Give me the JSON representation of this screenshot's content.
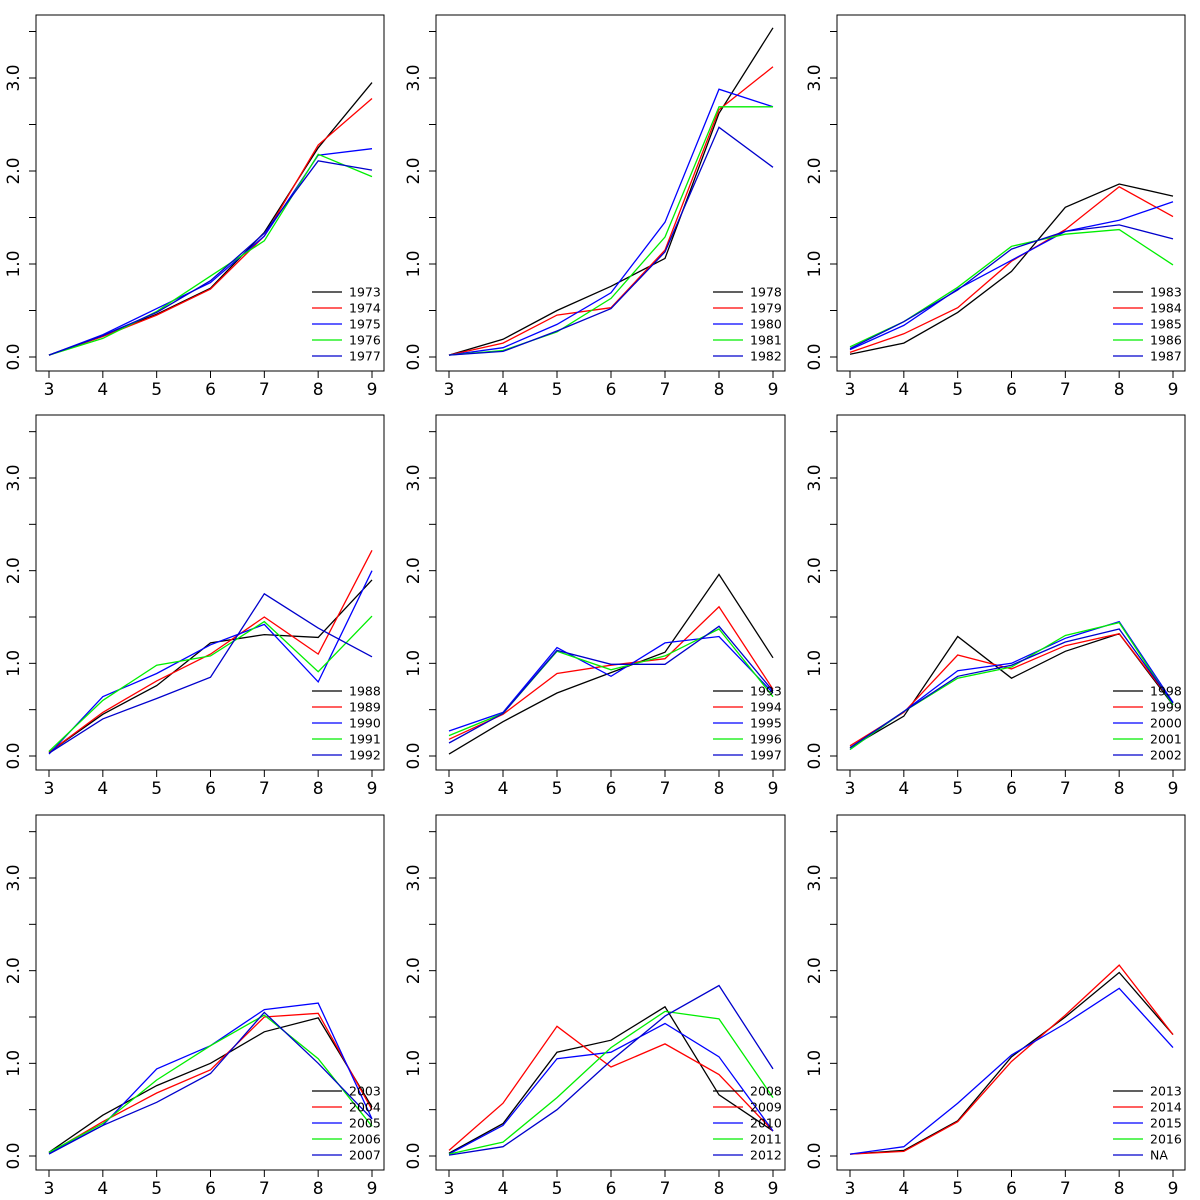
{
  "chart_data": [
    {
      "type": "line",
      "x": [
        3,
        4,
        5,
        6,
        7,
        8,
        9
      ],
      "xlim": [
        3,
        9
      ],
      "ylim": [
        0,
        3.5
      ],
      "yticks": [
        "0.0",
        "1.0",
        "2.0",
        "3.0"
      ],
      "grid": false,
      "legend_position": "bottom-right",
      "series": [
        {
          "name": "1973",
          "color": "#000000",
          "values": [
            0.02,
            0.23,
            0.46,
            0.74,
            1.34,
            2.25,
            2.95
          ]
        },
        {
          "name": "1974",
          "color": "#ff0000",
          "values": [
            0.02,
            0.22,
            0.45,
            0.73,
            1.3,
            2.28,
            2.78
          ]
        },
        {
          "name": "1975",
          "color": "#0000ff",
          "values": [
            0.02,
            0.24,
            0.52,
            0.8,
            1.3,
            2.17,
            2.24
          ]
        },
        {
          "name": "1976",
          "color": "#00ee00",
          "values": [
            0.02,
            0.2,
            0.49,
            0.87,
            1.25,
            2.18,
            1.94
          ]
        },
        {
          "name": "1977",
          "color": "#0000cc",
          "values": [
            0.02,
            0.23,
            0.48,
            0.82,
            1.33,
            2.11,
            2.01
          ]
        }
      ]
    },
    {
      "type": "line",
      "x": [
        3,
        4,
        5,
        6,
        7,
        8,
        9
      ],
      "xlim": [
        3,
        9
      ],
      "ylim": [
        0,
        3.5
      ],
      "yticks": [
        "0.0",
        "1.0",
        "2.0",
        "3.0"
      ],
      "grid": false,
      "legend_position": "bottom-right",
      "series": [
        {
          "name": "1978",
          "color": "#000000",
          "values": [
            0.02,
            0.19,
            0.5,
            0.76,
            1.06,
            2.62,
            3.54
          ]
        },
        {
          "name": "1979",
          "color": "#ff0000",
          "values": [
            0.02,
            0.15,
            0.45,
            0.53,
            1.15,
            2.66,
            3.12
          ]
        },
        {
          "name": "1980",
          "color": "#0000ff",
          "values": [
            0.02,
            0.1,
            0.35,
            0.69,
            1.45,
            2.88,
            2.69
          ]
        },
        {
          "name": "1981",
          "color": "#00ee00",
          "values": [
            0.02,
            0.07,
            0.27,
            0.63,
            1.29,
            2.69,
            2.69
          ]
        },
        {
          "name": "1982",
          "color": "#0000cc",
          "values": [
            0.02,
            0.06,
            0.28,
            0.52,
            1.13,
            2.47,
            2.04
          ]
        }
      ]
    },
    {
      "type": "line",
      "x": [
        3,
        4,
        5,
        6,
        7,
        8,
        9
      ],
      "xlim": [
        3,
        9
      ],
      "ylim": [
        0,
        3.5
      ],
      "yticks": [
        "0.0",
        "1.0",
        "2.0",
        "3.0"
      ],
      "grid": false,
      "legend_position": "bottom-right",
      "series": [
        {
          "name": "1983",
          "color": "#000000",
          "values": [
            0.03,
            0.15,
            0.48,
            0.92,
            1.61,
            1.86,
            1.73
          ]
        },
        {
          "name": "1984",
          "color": "#ff0000",
          "values": [
            0.05,
            0.25,
            0.53,
            1.03,
            1.37,
            1.83,
            1.51
          ]
        },
        {
          "name": "1985",
          "color": "#0000ff",
          "values": [
            0.08,
            0.34,
            0.73,
            1.04,
            1.35,
            1.47,
            1.67
          ]
        },
        {
          "name": "1986",
          "color": "#00ee00",
          "values": [
            0.11,
            0.38,
            0.75,
            1.19,
            1.32,
            1.37,
            0.99
          ]
        },
        {
          "name": "1987",
          "color": "#0000cc",
          "values": [
            0.09,
            0.38,
            0.72,
            1.16,
            1.35,
            1.42,
            1.27
          ]
        }
      ]
    },
    {
      "type": "line",
      "x": [
        3,
        4,
        5,
        6,
        7,
        8,
        9
      ],
      "xlim": [
        3,
        9
      ],
      "ylim": [
        0,
        3.5
      ],
      "yticks": [
        "0.0",
        "1.0",
        "2.0",
        "3.0"
      ],
      "grid": false,
      "legend_position": "bottom-right",
      "series": [
        {
          "name": "1988",
          "color": "#000000",
          "values": [
            0.04,
            0.45,
            0.76,
            1.22,
            1.31,
            1.28,
            1.9
          ]
        },
        {
          "name": "1989",
          "color": "#ff0000",
          "values": [
            0.04,
            0.47,
            0.81,
            1.1,
            1.5,
            1.1,
            2.22
          ]
        },
        {
          "name": "1990",
          "color": "#0000ff",
          "values": [
            0.02,
            0.64,
            0.89,
            1.2,
            1.42,
            0.8,
            2.0
          ]
        },
        {
          "name": "1991",
          "color": "#00ee00",
          "values": [
            0.05,
            0.6,
            0.98,
            1.08,
            1.45,
            0.91,
            1.51
          ]
        },
        {
          "name": "1992",
          "color": "#0000cc",
          "values": [
            0.03,
            0.4,
            0.62,
            0.85,
            1.75,
            1.38,
            1.07
          ]
        }
      ]
    },
    {
      "type": "line",
      "x": [
        3,
        4,
        5,
        6,
        7,
        8,
        9
      ],
      "xlim": [
        3,
        9
      ],
      "ylim": [
        0,
        3.5
      ],
      "yticks": [
        "0.0",
        "1.0",
        "2.0",
        "3.0"
      ],
      "grid": false,
      "legend_position": "bottom-right",
      "series": [
        {
          "name": "1993",
          "color": "#000000",
          "values": [
            0.02,
            0.37,
            0.68,
            0.9,
            1.12,
            1.96,
            1.06
          ]
        },
        {
          "name": "1994",
          "color": "#ff0000",
          "values": [
            0.18,
            0.45,
            0.89,
            0.98,
            1.05,
            1.61,
            0.72
          ]
        },
        {
          "name": "1995",
          "color": "#0000ff",
          "values": [
            0.27,
            0.47,
            1.17,
            0.86,
            1.22,
            1.29,
            0.68
          ]
        },
        {
          "name": "1996",
          "color": "#00ee00",
          "values": [
            0.22,
            0.46,
            1.13,
            0.93,
            1.08,
            1.37,
            0.64
          ]
        },
        {
          "name": "1997",
          "color": "#0000cc",
          "values": [
            0.14,
            0.46,
            1.14,
            0.99,
            0.99,
            1.4,
            0.7
          ]
        }
      ]
    },
    {
      "type": "line",
      "x": [
        3,
        4,
        5,
        6,
        7,
        8,
        9
      ],
      "xlim": [
        3,
        9
      ],
      "ylim": [
        0,
        3.5
      ],
      "yticks": [
        "0.0",
        "1.0",
        "2.0",
        "3.0"
      ],
      "grid": false,
      "legend_position": "bottom-right",
      "series": [
        {
          "name": "1998",
          "color": "#000000",
          "values": [
            0.09,
            0.43,
            1.29,
            0.84,
            1.13,
            1.32,
            0.55
          ]
        },
        {
          "name": "1999",
          "color": "#ff0000",
          "values": [
            0.11,
            0.47,
            1.09,
            0.94,
            1.19,
            1.32,
            0.57
          ]
        },
        {
          "name": "2000",
          "color": "#0000ff",
          "values": [
            0.07,
            0.48,
            0.92,
            1.0,
            1.27,
            1.45,
            0.58
          ]
        },
        {
          "name": "2001",
          "color": "#00ee00",
          "values": [
            0.07,
            0.48,
            0.84,
            0.96,
            1.3,
            1.44,
            0.55
          ]
        },
        {
          "name": "2002",
          "color": "#0000cc",
          "values": [
            0.09,
            0.48,
            0.86,
            0.98,
            1.23,
            1.37,
            0.57
          ]
        }
      ]
    },
    {
      "type": "line",
      "x": [
        3,
        4,
        5,
        6,
        7,
        8,
        9
      ],
      "xlim": [
        3,
        9
      ],
      "ylim": [
        0,
        3.5
      ],
      "yticks": [
        "0.0",
        "1.0",
        "2.0",
        "3.0"
      ],
      "grid": false,
      "legend_position": "bottom-right",
      "series": [
        {
          "name": "2003",
          "color": "#000000",
          "values": [
            0.04,
            0.44,
            0.76,
            1.0,
            1.34,
            1.49,
            0.53
          ]
        },
        {
          "name": "2004",
          "color": "#ff0000",
          "values": [
            0.03,
            0.37,
            0.68,
            0.93,
            1.5,
            1.54,
            0.5
          ]
        },
        {
          "name": "2005",
          "color": "#0000ff",
          "values": [
            0.03,
            0.33,
            0.94,
            1.19,
            1.58,
            1.65,
            0.4
          ]
        },
        {
          "name": "2006",
          "color": "#00ee00",
          "values": [
            0.04,
            0.35,
            0.82,
            1.19,
            1.52,
            1.05,
            0.32
          ]
        },
        {
          "name": "2007",
          "color": "#0000cc",
          "values": [
            0.02,
            0.33,
            0.58,
            0.89,
            1.55,
            1.0,
            0.4
          ]
        }
      ]
    },
    {
      "type": "line",
      "x": [
        3,
        4,
        5,
        6,
        7,
        8,
        9
      ],
      "xlim": [
        3,
        9
      ],
      "ylim": [
        0,
        3.5
      ],
      "yticks": [
        "0.0",
        "1.0",
        "2.0",
        "3.0"
      ],
      "grid": false,
      "legend_position": "bottom-right",
      "series": [
        {
          "name": "2008",
          "color": "#000000",
          "values": [
            0.03,
            0.35,
            1.12,
            1.25,
            1.61,
            0.66,
            0.27
          ]
        },
        {
          "name": "2009",
          "color": "#ff0000",
          "values": [
            0.06,
            0.57,
            1.4,
            0.96,
            1.21,
            0.88,
            0.27
          ]
        },
        {
          "name": "2010",
          "color": "#0000ff",
          "values": [
            0.02,
            0.33,
            1.05,
            1.12,
            1.43,
            1.07,
            0.27
          ]
        },
        {
          "name": "2011",
          "color": "#00ee00",
          "values": [
            0.02,
            0.15,
            0.63,
            1.17,
            1.56,
            1.48,
            0.63
          ]
        },
        {
          "name": "2012",
          "color": "#0000cc",
          "values": [
            0.01,
            0.1,
            0.5,
            1.03,
            1.51,
            1.84,
            0.94
          ]
        }
      ]
    },
    {
      "type": "line",
      "x": [
        3,
        4,
        5,
        6,
        7,
        8,
        9
      ],
      "xlim": [
        3,
        9
      ],
      "ylim": [
        0,
        3.5
      ],
      "yticks": [
        "0.0",
        "1.0",
        "2.0",
        "3.0"
      ],
      "grid": false,
      "legend_position": "bottom-right",
      "series": [
        {
          "name": "2013",
          "color": "#000000",
          "values": [
            0.02,
            0.06,
            0.38,
            1.07,
            1.5,
            1.98,
            1.31
          ]
        },
        {
          "name": "2014",
          "color": "#ff0000",
          "values": [
            0.02,
            0.05,
            0.37,
            1.02,
            1.52,
            2.06,
            1.31
          ]
        },
        {
          "name": "2015",
          "color": "#0000ff",
          "values": [
            0.02,
            0.1,
            0.57,
            1.09,
            1.43,
            1.81,
            1.17
          ]
        },
        {
          "name": "2016",
          "color": "#00ee00",
          "values": null
        },
        {
          "name": "NA",
          "color": "#0000cc",
          "values": null
        }
      ]
    }
  ]
}
